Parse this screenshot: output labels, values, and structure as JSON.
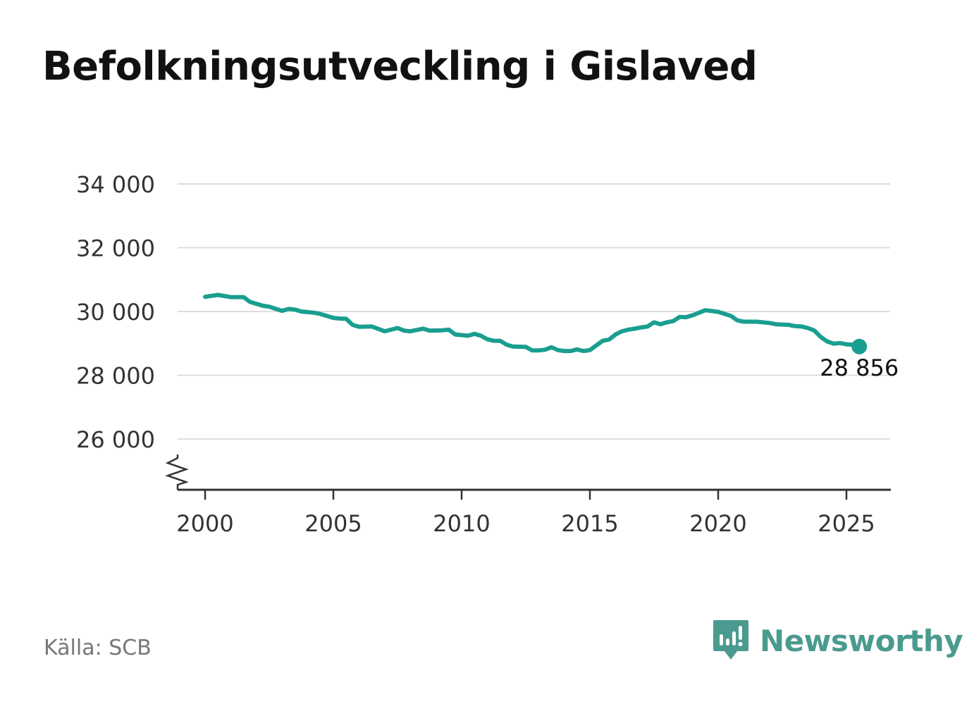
{
  "title": "Befolkningsutveckling i Gislaved",
  "source": "Källa: SCB",
  "brand": {
    "name": "Newsworthy",
    "icon": "newsworthy-logo-icon",
    "color": "#4a9a8f"
  },
  "chart_data": {
    "type": "line",
    "title": "Befolkningsutveckling i Gislaved",
    "xlabel": "",
    "ylabel": "",
    "xlim": [
      1999,
      2026.7
    ],
    "ylim": [
      24500,
      34500
    ],
    "x_ticks": [
      2000,
      2005,
      2010,
      2015,
      2020,
      2025
    ],
    "y_ticks": [
      26000,
      28000,
      30000,
      32000,
      34000
    ],
    "y_tick_labels": [
      "26 000",
      "28 000",
      "30 000",
      "32 000",
      "34 000"
    ],
    "y_axis_break": true,
    "grid": "horizontal",
    "line_color": "#1a9e8f",
    "last_value_label": "28 856",
    "series": [
      {
        "points": [
          [
            2000.0,
            30460
          ],
          [
            2000.5,
            30520
          ],
          [
            2001.0,
            30450
          ],
          [
            2001.5,
            30450
          ],
          [
            2001.75,
            30300
          ],
          [
            2002.25,
            30180
          ],
          [
            2002.5,
            30150
          ],
          [
            2003.0,
            30020
          ],
          [
            2003.25,
            30080
          ],
          [
            2003.5,
            30060
          ],
          [
            2003.75,
            30000
          ],
          [
            2004.25,
            29960
          ],
          [
            2004.5,
            29920
          ],
          [
            2005.0,
            29800
          ],
          [
            2005.25,
            29780
          ],
          [
            2005.5,
            29770
          ],
          [
            2005.75,
            29580
          ],
          [
            2006.0,
            29520
          ],
          [
            2006.5,
            29530
          ],
          [
            2007.0,
            29380
          ],
          [
            2007.5,
            29480
          ],
          [
            2007.75,
            29400
          ],
          [
            2008.0,
            29380
          ],
          [
            2008.5,
            29460
          ],
          [
            2008.75,
            29400
          ],
          [
            2009.25,
            29410
          ],
          [
            2009.5,
            29430
          ],
          [
            2009.75,
            29280
          ],
          [
            2010.25,
            29240
          ],
          [
            2010.5,
            29300
          ],
          [
            2010.75,
            29240
          ],
          [
            2011.0,
            29130
          ],
          [
            2011.25,
            29080
          ],
          [
            2011.5,
            29080
          ],
          [
            2011.75,
            28960
          ],
          [
            2012.0,
            28900
          ],
          [
            2012.5,
            28890
          ],
          [
            2012.75,
            28780
          ],
          [
            2013.0,
            28780
          ],
          [
            2013.25,
            28800
          ],
          [
            2013.5,
            28880
          ],
          [
            2013.75,
            28790
          ],
          [
            2014.0,
            28760
          ],
          [
            2014.25,
            28760
          ],
          [
            2014.5,
            28810
          ],
          [
            2014.75,
            28760
          ],
          [
            2015.0,
            28790
          ],
          [
            2015.5,
            29080
          ],
          [
            2015.75,
            29120
          ],
          [
            2016.0,
            29280
          ],
          [
            2016.25,
            29380
          ],
          [
            2016.5,
            29430
          ],
          [
            2016.75,
            29460
          ],
          [
            2017.0,
            29500
          ],
          [
            2017.25,
            29530
          ],
          [
            2017.5,
            29660
          ],
          [
            2017.75,
            29600
          ],
          [
            2018.0,
            29660
          ],
          [
            2018.25,
            29700
          ],
          [
            2018.5,
            29830
          ],
          [
            2018.75,
            29820
          ],
          [
            2019.0,
            29880
          ],
          [
            2019.5,
            30040
          ],
          [
            2020.0,
            29990
          ],
          [
            2020.5,
            29860
          ],
          [
            2020.75,
            29720
          ],
          [
            2021.0,
            29680
          ],
          [
            2021.5,
            29680
          ],
          [
            2022.0,
            29640
          ],
          [
            2022.25,
            29600
          ],
          [
            2022.75,
            29580
          ],
          [
            2023.0,
            29540
          ],
          [
            2023.25,
            29530
          ],
          [
            2023.5,
            29480
          ],
          [
            2023.75,
            29400
          ],
          [
            2024.0,
            29200
          ],
          [
            2024.25,
            29060
          ],
          [
            2024.5,
            28990
          ],
          [
            2024.75,
            29010
          ],
          [
            2025.0,
            28970
          ],
          [
            2025.25,
            28960
          ],
          [
            2025.5,
            28900
          ]
        ]
      }
    ]
  }
}
